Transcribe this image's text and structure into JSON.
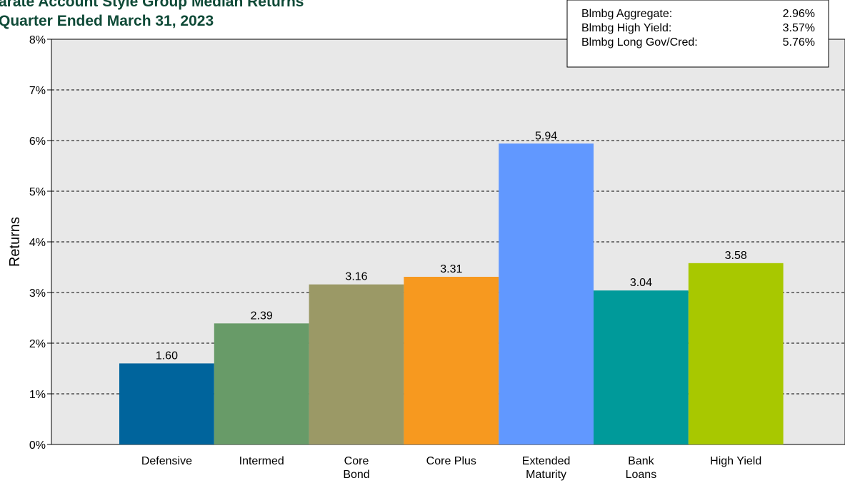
{
  "header": {
    "title_line1": "arate Account Style Group Median Returns",
    "title_line2": "Quarter Ended March 31, 2023"
  },
  "benchmarks": [
    {
      "name": "Blmbg Aggregate:",
      "value": "2.96%"
    },
    {
      "name": "Blmbg High Yield:",
      "value": "3.57%"
    },
    {
      "name": "Blmbg Long Gov/Cred:",
      "value": "5.76%"
    }
  ],
  "chart_data": {
    "type": "bar",
    "categories": [
      [
        "Defensive"
      ],
      [
        "Intermed"
      ],
      [
        "Core",
        "Bond"
      ],
      [
        "Core Plus"
      ],
      [
        "Extended",
        "Maturity"
      ],
      [
        "Bank",
        "Loans"
      ],
      [
        "High Yield"
      ]
    ],
    "values": [
      1.6,
      2.39,
      3.16,
      3.31,
      5.94,
      3.04,
      3.58
    ],
    "value_labels": [
      "1.60",
      "2.39",
      "3.16",
      "3.31",
      "5.94",
      "3.04",
      "3.58"
    ],
    "colors": [
      "#00649c",
      "#689b68",
      "#9b9966",
      "#f7991f",
      "#6198ff",
      "#009a9a",
      "#a8c800"
    ],
    "ylabel": "Returns",
    "ylim": [
      0,
      8
    ],
    "yticks": [
      0,
      1,
      2,
      3,
      4,
      5,
      6,
      7,
      8
    ],
    "ytick_labels": [
      "0%",
      "1%",
      "2%",
      "3%",
      "4%",
      "5%",
      "6%",
      "7%",
      "8%"
    ],
    "grid": true,
    "plot_background": "#e8e8e8",
    "legend_placement": "top-right"
  }
}
